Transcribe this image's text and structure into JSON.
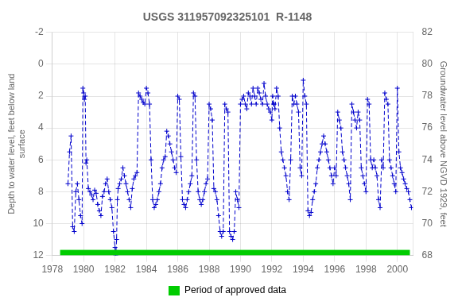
{
  "chart_data": {
    "type": "line",
    "title": "USGS 311957092325101  R-1148",
    "ylabel": "Depth to water level, feet below land\nsurface",
    "y2label": "Groundwater level above NGVD 1929, feet",
    "x": [
      1979.0,
      1979.1,
      1979.2,
      1979.3,
      1979.4,
      1979.5,
      1979.6,
      1979.7,
      1979.8,
      1979.9,
      1979.95,
      1980.0,
      1980.05,
      1980.1,
      1980.15,
      1980.2,
      1980.3,
      1980.4,
      1980.5,
      1980.6,
      1980.7,
      1980.8,
      1980.9,
      1981.0,
      1981.1,
      1981.2,
      1981.3,
      1981.4,
      1981.5,
      1981.6,
      1981.7,
      1981.8,
      1981.9,
      1982.0,
      1982.05,
      1982.1,
      1982.15,
      1982.2,
      1982.3,
      1982.4,
      1982.5,
      1982.6,
      1982.7,
      1982.8,
      1982.9,
      1983.0,
      1983.1,
      1983.2,
      1983.3,
      1983.4,
      1983.5,
      1983.6,
      1983.7,
      1983.8,
      1983.9,
      1984.0,
      1984.1,
      1984.2,
      1984.3,
      1984.4,
      1984.5,
      1984.6,
      1984.7,
      1984.8,
      1984.9,
      1985.0,
      1985.1,
      1985.2,
      1985.3,
      1985.4,
      1985.5,
      1985.6,
      1985.7,
      1985.8,
      1985.9,
      1986.0,
      1986.1,
      1986.2,
      1986.3,
      1986.4,
      1986.5,
      1986.6,
      1986.7,
      1986.8,
      1986.9,
      1987.0,
      1987.1,
      1987.2,
      1987.3,
      1987.4,
      1987.5,
      1987.6,
      1987.7,
      1987.8,
      1987.9,
      1988.0,
      1988.1,
      1988.2,
      1988.3,
      1988.4,
      1988.5,
      1988.6,
      1988.7,
      1988.8,
      1988.9,
      1989.0,
      1989.1,
      1989.2,
      1989.3,
      1989.4,
      1989.5,
      1989.6,
      1989.7,
      1989.8,
      1989.9,
      1990.0,
      1990.1,
      1990.2,
      1990.3,
      1990.4,
      1990.5,
      1990.6,
      1990.7,
      1990.8,
      1990.9,
      1991.0,
      1991.1,
      1991.2,
      1991.3,
      1991.4,
      1991.5,
      1991.6,
      1991.7,
      1991.8,
      1991.9,
      1992.0,
      1992.05,
      1992.1,
      1992.15,
      1992.2,
      1992.3,
      1992.4,
      1992.5,
      1992.6,
      1992.7,
      1992.8,
      1992.9,
      1993.0,
      1993.1,
      1993.2,
      1993.3,
      1993.4,
      1993.5,
      1993.6,
      1993.7,
      1993.8,
      1993.9,
      1994.0,
      1994.1,
      1994.2,
      1994.3,
      1994.4,
      1994.5,
      1994.6,
      1994.7,
      1994.8,
      1994.9,
      1995.0,
      1995.1,
      1995.2,
      1995.3,
      1995.4,
      1995.5,
      1995.6,
      1995.7,
      1995.8,
      1995.9,
      1996.0,
      1996.1,
      1996.2,
      1996.3,
      1996.4,
      1996.5,
      1996.6,
      1996.7,
      1996.8,
      1996.9,
      1997.0,
      1997.1,
      1997.2,
      1997.3,
      1997.4,
      1997.5,
      1997.6,
      1997.7,
      1997.8,
      1997.9,
      1998.0,
      1998.1,
      1998.2,
      1998.3,
      1998.4,
      1998.5,
      1998.6,
      1998.7,
      1998.8,
      1998.9,
      1999.0,
      1999.1,
      1999.2,
      1999.3,
      1999.4,
      1999.5,
      1999.6,
      1999.7,
      1999.8,
      1999.9,
      2000.0,
      2000.1,
      2000.2,
      2000.3,
      2000.4,
      2000.5,
      2000.6,
      2000.7,
      2000.8,
      2000.9
    ],
    "xlim": [
      1978,
      2001
    ],
    "xticks": [
      1978,
      1980,
      1982,
      1984,
      1986,
      1988,
      1990,
      1992,
      1994,
      1996,
      1998,
      2000
    ],
    "ylim": [
      12,
      -2
    ],
    "yticks": [
      -2,
      0,
      2,
      4,
      6,
      8,
      10,
      12
    ],
    "y2lim": [
      68,
      82
    ],
    "y2ticks": [
      82,
      80,
      78,
      76,
      74,
      72,
      70,
      68
    ],
    "grid": true,
    "series": [
      {
        "color": "#0000cc",
        "line_style": "dashed",
        "marker": "plus",
        "values": [
          7.5,
          5.5,
          4.5,
          10.2,
          10.5,
          8.0,
          7.5,
          8.5,
          9.5,
          10.0,
          1.5,
          1.8,
          2.2,
          2.0,
          6.2,
          6.0,
          7.8,
          8.0,
          8.2,
          8.5,
          7.9,
          8.1,
          8.8,
          9.2,
          9.5,
          8.3,
          8.0,
          7.5,
          7.2,
          8.0,
          8.5,
          9.0,
          10.5,
          11.5,
          12.0,
          11.0,
          8.5,
          7.8,
          7.5,
          7.2,
          6.5,
          7.0,
          7.5,
          8.0,
          8.5,
          9.0,
          7.8,
          7.2,
          7.0,
          6.8,
          1.8,
          2.0,
          2.2,
          2.4,
          2.5,
          1.5,
          1.8,
          2.5,
          6.0,
          8.5,
          9.0,
          8.8,
          8.5,
          8.0,
          7.5,
          6.5,
          6.0,
          5.8,
          4.2,
          4.5,
          5.0,
          5.5,
          6.0,
          6.5,
          6.8,
          2.0,
          2.2,
          5.8,
          8.5,
          8.8,
          9.0,
          8.5,
          8.0,
          7.5,
          7.0,
          1.8,
          2.0,
          6.0,
          8.0,
          8.5,
          8.8,
          8.5,
          8.0,
          7.5,
          7.2,
          2.5,
          2.8,
          3.5,
          7.8,
          8.0,
          8.5,
          9.5,
          10.5,
          10.8,
          10.5,
          2.5,
          2.8,
          3.0,
          10.5,
          10.8,
          11.0,
          10.5,
          8.0,
          8.5,
          9.0,
          2.5,
          2.2,
          2.0,
          2.5,
          2.8,
          1.8,
          2.0,
          2.5,
          1.5,
          2.0,
          2.5,
          1.5,
          1.8,
          2.2,
          2.5,
          1.2,
          2.0,
          2.5,
          2.8,
          3.0,
          3.5,
          2.0,
          2.5,
          2.5,
          2.8,
          1.5,
          2.0,
          4.0,
          5.5,
          6.0,
          6.5,
          7.0,
          8.0,
          8.5,
          6.0,
          2.0,
          2.5,
          2.0,
          2.5,
          3.0,
          6.5,
          7.0,
          1.0,
          2.0,
          2.5,
          9.2,
          9.5,
          9.3,
          8.5,
          8.0,
          7.5,
          6.5,
          6.0,
          5.5,
          5.0,
          4.5,
          5.0,
          5.5,
          6.0,
          6.5,
          7.0,
          7.5,
          6.5,
          7.0,
          3.0,
          3.5,
          4.0,
          5.5,
          6.0,
          6.5,
          7.0,
          7.5,
          8.5,
          2.5,
          3.0,
          3.5,
          4.0,
          3.0,
          3.5,
          6.5,
          7.0,
          7.5,
          8.0,
          2.2,
          2.5,
          6.0,
          6.5,
          6.0,
          6.5,
          7.0,
          8.5,
          9.0,
          6.0,
          6.5,
          1.8,
          2.2,
          2.5,
          6.0,
          6.5,
          7.0,
          7.5,
          8.0,
          1.5,
          5.5,
          6.5,
          6.8,
          7.2,
          7.5,
          7.8,
          8.0,
          8.5,
          9.0
        ]
      },
      {
        "name": "Period of approved data",
        "type": "bar",
        "orientation": "horizontal",
        "color": "#00cc00",
        "start": 1978.5,
        "end": 2000.8,
        "y": 12
      }
    ]
  }
}
